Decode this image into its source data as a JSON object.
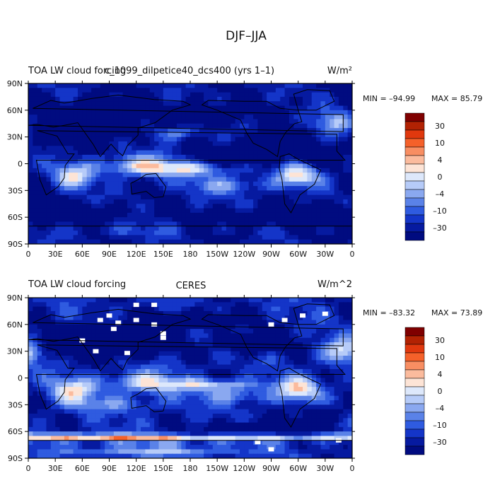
{
  "page_title": "DJF–JJA",
  "panels": [
    {
      "left_title": "TOA LW cloud forcing",
      "center_title": "c_1099_dilpetice40_dcs400 (yrs 1–1)",
      "units": "W/m²",
      "min_label": "MIN = –94.99",
      "max_label": "MAX =  85.79"
    },
    {
      "left_title": "TOA LW cloud forcing",
      "center_title": "CERES",
      "units": "W/m^2",
      "min_label": "MIN = –83.32",
      "max_label": "MAX =  73.89"
    }
  ],
  "chart_data": {
    "type": "heatmap",
    "title": "DJF–JJA TOA LW cloud forcing",
    "x_ticks": [
      "0",
      "30E",
      "60E",
      "90E",
      "120E",
      "150E",
      "180",
      "150W",
      "120W",
      "90W",
      "60W",
      "30W",
      "0"
    ],
    "y_ticks": [
      "90N",
      "60N",
      "30N",
      "0",
      "30S",
      "60S",
      "90S"
    ],
    "xlim": [
      0,
      360
    ],
    "ylim": [
      -90,
      90
    ],
    "colorbar_labels": [
      "30",
      "10",
      "4",
      "0",
      "–4",
      "–10",
      "–30"
    ],
    "colorbar_colors": [
      "#7f0000",
      "#b22203",
      "#e0380e",
      "#f5612a",
      "#f88e62",
      "#fbbb9d",
      "#fde4d6",
      "#dde8fb",
      "#b6cbf8",
      "#8aa8f0",
      "#5a82e8",
      "#2f5be0",
      "#1435c8",
      "#061aa0",
      "#000b80"
    ],
    "colors": {
      "coast": "#000000"
    }
  }
}
